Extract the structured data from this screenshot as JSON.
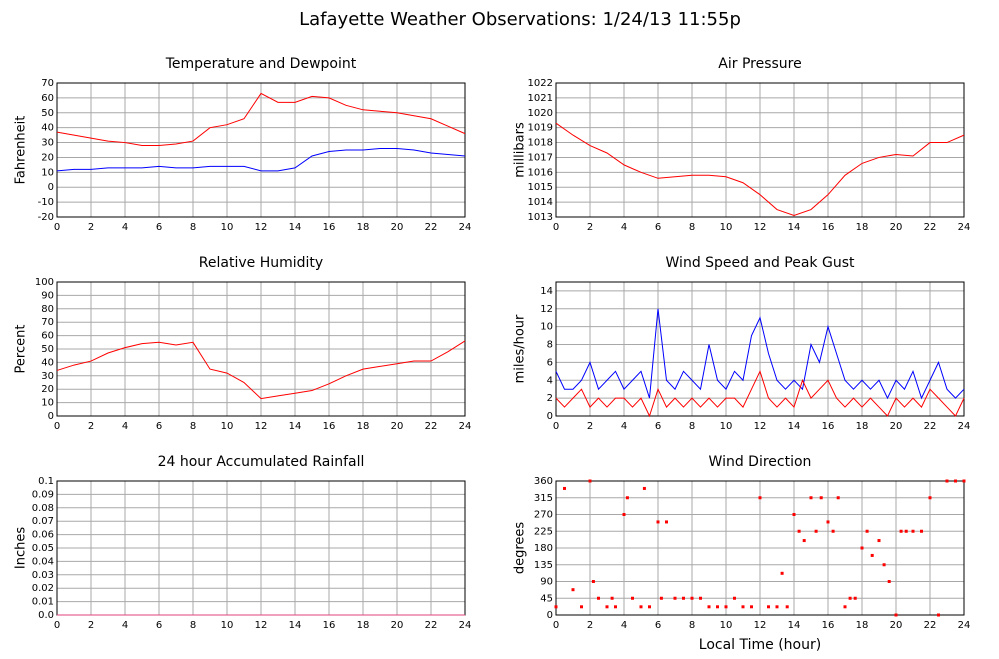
{
  "title": "Lafayette Weather Observations: 1/24/13 11:55p",
  "chart_data": [
    {
      "type": "line",
      "title": "Temperature and Dewpoint",
      "y_label": "Fahrenheit",
      "x": [
        0,
        1,
        2,
        3,
        4,
        5,
        6,
        7,
        8,
        9,
        10,
        11,
        12,
        13,
        14,
        15,
        16,
        17,
        18,
        19,
        20,
        21,
        22,
        23,
        24
      ],
      "series": [
        {
          "color": "#ff0000",
          "values": [
            37,
            35,
            33,
            31,
            30,
            28,
            28,
            29,
            31,
            40,
            42,
            46,
            63,
            57,
            57,
            61,
            60,
            55,
            52,
            51,
            50,
            48,
            46,
            41,
            36
          ]
        },
        {
          "color": "#0000ff",
          "values": [
            11,
            12,
            12,
            13,
            13,
            13,
            14,
            13,
            13,
            14,
            14,
            14,
            11,
            11,
            13,
            21,
            24,
            25,
            25,
            26,
            26,
            25,
            23,
            22,
            21
          ]
        }
      ],
      "xlim": [
        0,
        24
      ],
      "xticks": [
        0,
        2,
        4,
        6,
        8,
        10,
        12,
        14,
        16,
        18,
        20,
        22,
        24
      ],
      "ylim": [
        -20,
        70
      ],
      "yticks": [
        -20,
        -10,
        0,
        10,
        20,
        30,
        40,
        50,
        60,
        70
      ],
      "grid": true
    },
    {
      "type": "line",
      "title": "Air Pressure",
      "y_label": "millibars",
      "x": [
        0,
        1,
        2,
        3,
        4,
        5,
        6,
        7,
        8,
        9,
        10,
        11,
        12,
        13,
        14,
        15,
        16,
        17,
        18,
        19,
        20,
        21,
        22,
        23,
        24
      ],
      "series": [
        {
          "color": "#ff0000",
          "values": [
            1019.3,
            1018.5,
            1017.8,
            1017.3,
            1016.5,
            1016.0,
            1015.6,
            1015.7,
            1015.8,
            1015.8,
            1015.7,
            1015.3,
            1014.5,
            1013.5,
            1013.1,
            1013.5,
            1014.5,
            1015.8,
            1016.6,
            1017.0,
            1017.2,
            1017.1,
            1018.0,
            1018.0,
            1018.5
          ]
        }
      ],
      "xlim": [
        0,
        24
      ],
      "xticks": [
        0,
        2,
        4,
        6,
        8,
        10,
        12,
        14,
        16,
        18,
        20,
        22,
        24
      ],
      "ylim": [
        1013,
        1022
      ],
      "yticks": [
        1013,
        1014,
        1015,
        1016,
        1017,
        1018,
        1019,
        1020,
        1021,
        1022
      ],
      "grid": true
    },
    {
      "type": "line",
      "title": "Relative Humidity",
      "y_label": "Percent",
      "x": [
        0,
        1,
        2,
        3,
        4,
        5,
        6,
        7,
        8,
        9,
        10,
        11,
        12,
        13,
        14,
        15,
        16,
        17,
        18,
        19,
        20,
        21,
        22,
        23,
        24
      ],
      "series": [
        {
          "color": "#ff0000",
          "values": [
            34,
            38,
            41,
            47,
            51,
            54,
            55,
            53,
            55,
            35,
            32,
            25,
            13,
            15,
            17,
            19,
            24,
            30,
            35,
            37,
            39,
            41,
            41,
            48,
            56
          ]
        }
      ],
      "xlim": [
        0,
        24
      ],
      "xticks": [
        0,
        2,
        4,
        6,
        8,
        10,
        12,
        14,
        16,
        18,
        20,
        22,
        24
      ],
      "ylim": [
        0,
        100
      ],
      "yticks": [
        0,
        10,
        20,
        30,
        40,
        50,
        60,
        70,
        80,
        90,
        100
      ],
      "grid": true
    },
    {
      "type": "line",
      "title": "Wind Speed and Peak Gust",
      "y_label": "miles/hour",
      "x": [
        0,
        0.5,
        1,
        1.5,
        2,
        2.5,
        3,
        3.5,
        4,
        4.5,
        5,
        5.5,
        6,
        6.5,
        7,
        7.5,
        8,
        8.5,
        9,
        9.5,
        10,
        10.5,
        11,
        11.5,
        12,
        12.5,
        13,
        13.5,
        14,
        14.5,
        15,
        15.5,
        16,
        16.5,
        17,
        17.5,
        18,
        18.5,
        19,
        19.5,
        20,
        20.5,
        21,
        21.5,
        22,
        22.5,
        23,
        23.5,
        24
      ],
      "series": [
        {
          "color": "#0000ff",
          "values": [
            5,
            3,
            3,
            4,
            6,
            3,
            4,
            5,
            3,
            4,
            5,
            2,
            12,
            4,
            3,
            5,
            4,
            3,
            8,
            4,
            3,
            5,
            4,
            9,
            11,
            7,
            4,
            3,
            4,
            3,
            8,
            6,
            10,
            7,
            4,
            3,
            4,
            3,
            4,
            2,
            4,
            3,
            5,
            2,
            4,
            6,
            3,
            2,
            3
          ]
        },
        {
          "color": "#ff0000",
          "values": [
            2,
            1,
            2,
            3,
            1,
            2,
            1,
            2,
            2,
            1,
            2,
            0,
            3,
            1,
            2,
            1,
            2,
            1,
            2,
            1,
            2,
            2,
            1,
            3,
            5,
            2,
            1,
            2,
            1,
            4,
            2,
            3,
            4,
            2,
            1,
            2,
            1,
            2,
            1,
            0,
            2,
            1,
            2,
            1,
            3,
            2,
            1,
            0,
            2
          ]
        }
      ],
      "xlim": [
        0,
        24
      ],
      "xticks": [
        0,
        2,
        4,
        6,
        8,
        10,
        12,
        14,
        16,
        18,
        20,
        22,
        24
      ],
      "ylim": [
        0,
        15
      ],
      "yticks": [
        0,
        2,
        4,
        6,
        8,
        10,
        12,
        14
      ],
      "grid": true
    },
    {
      "type": "line",
      "title": "24 hour Accumulated Rainfall",
      "y_label": "Inches",
      "x": [
        0,
        24
      ],
      "series": [
        {
          "color": "#e0407a",
          "values": [
            0,
            0
          ]
        }
      ],
      "xlim": [
        0,
        24
      ],
      "xticks": [
        0,
        2,
        4,
        6,
        8,
        10,
        12,
        14,
        16,
        18,
        20,
        22,
        24
      ],
      "ylim": [
        0,
        0.1
      ],
      "yticks": [
        {
          "value": 0,
          "label": "0.0"
        },
        0.01,
        0.02,
        0.03,
        0.04,
        0.05,
        0.06,
        0.07,
        0.08,
        0.09,
        0.1
      ],
      "grid": true
    },
    {
      "type": "scatter",
      "title": "Wind Direction",
      "y_label": "degrees",
      "x_label": "Local Time (hour)",
      "x": [
        0,
        0.5,
        1,
        1.5,
        2,
        2.2,
        2.5,
        3,
        3.3,
        3.5,
        4,
        4.2,
        4.5,
        5,
        5.2,
        5.5,
        6,
        6.2,
        6.5,
        7,
        7.5,
        8,
        8.5,
        9,
        9.5,
        10,
        10.5,
        11,
        11.5,
        12,
        12.5,
        13,
        13.3,
        13.6,
        14,
        14.3,
        14.6,
        15,
        15.3,
        15.6,
        16,
        16.3,
        16.6,
        17,
        17.3,
        17.6,
        18,
        18.3,
        18.6,
        19,
        19.3,
        19.6,
        20,
        20.3,
        20.6,
        21,
        21.5,
        22,
        22.5,
        23,
        23.5,
        24
      ],
      "series": [
        {
          "color": "#ff0000",
          "values": [
            22,
            340,
            68,
            22,
            360,
            90,
            45,
            22,
            45,
            22,
            270,
            315,
            45,
            22,
            340,
            22,
            250,
            45,
            250,
            45,
            45,
            45,
            45,
            22,
            22,
            22,
            45,
            22,
            22,
            315,
            22,
            22,
            112,
            22,
            270,
            225,
            200,
            315,
            225,
            315,
            250,
            225,
            315,
            22,
            45,
            45,
            180,
            225,
            160,
            200,
            135,
            90,
            0,
            225,
            225,
            225,
            225,
            315,
            0,
            360,
            360,
            360
          ]
        }
      ],
      "xlim": [
        0,
        24
      ],
      "xticks": [
        0,
        2,
        4,
        6,
        8,
        10,
        12,
        14,
        16,
        18,
        20,
        22,
        24
      ],
      "ylim": [
        0,
        360
      ],
      "yticks": [
        0,
        45,
        90,
        135,
        180,
        225,
        270,
        315,
        360
      ],
      "grid": true
    }
  ]
}
